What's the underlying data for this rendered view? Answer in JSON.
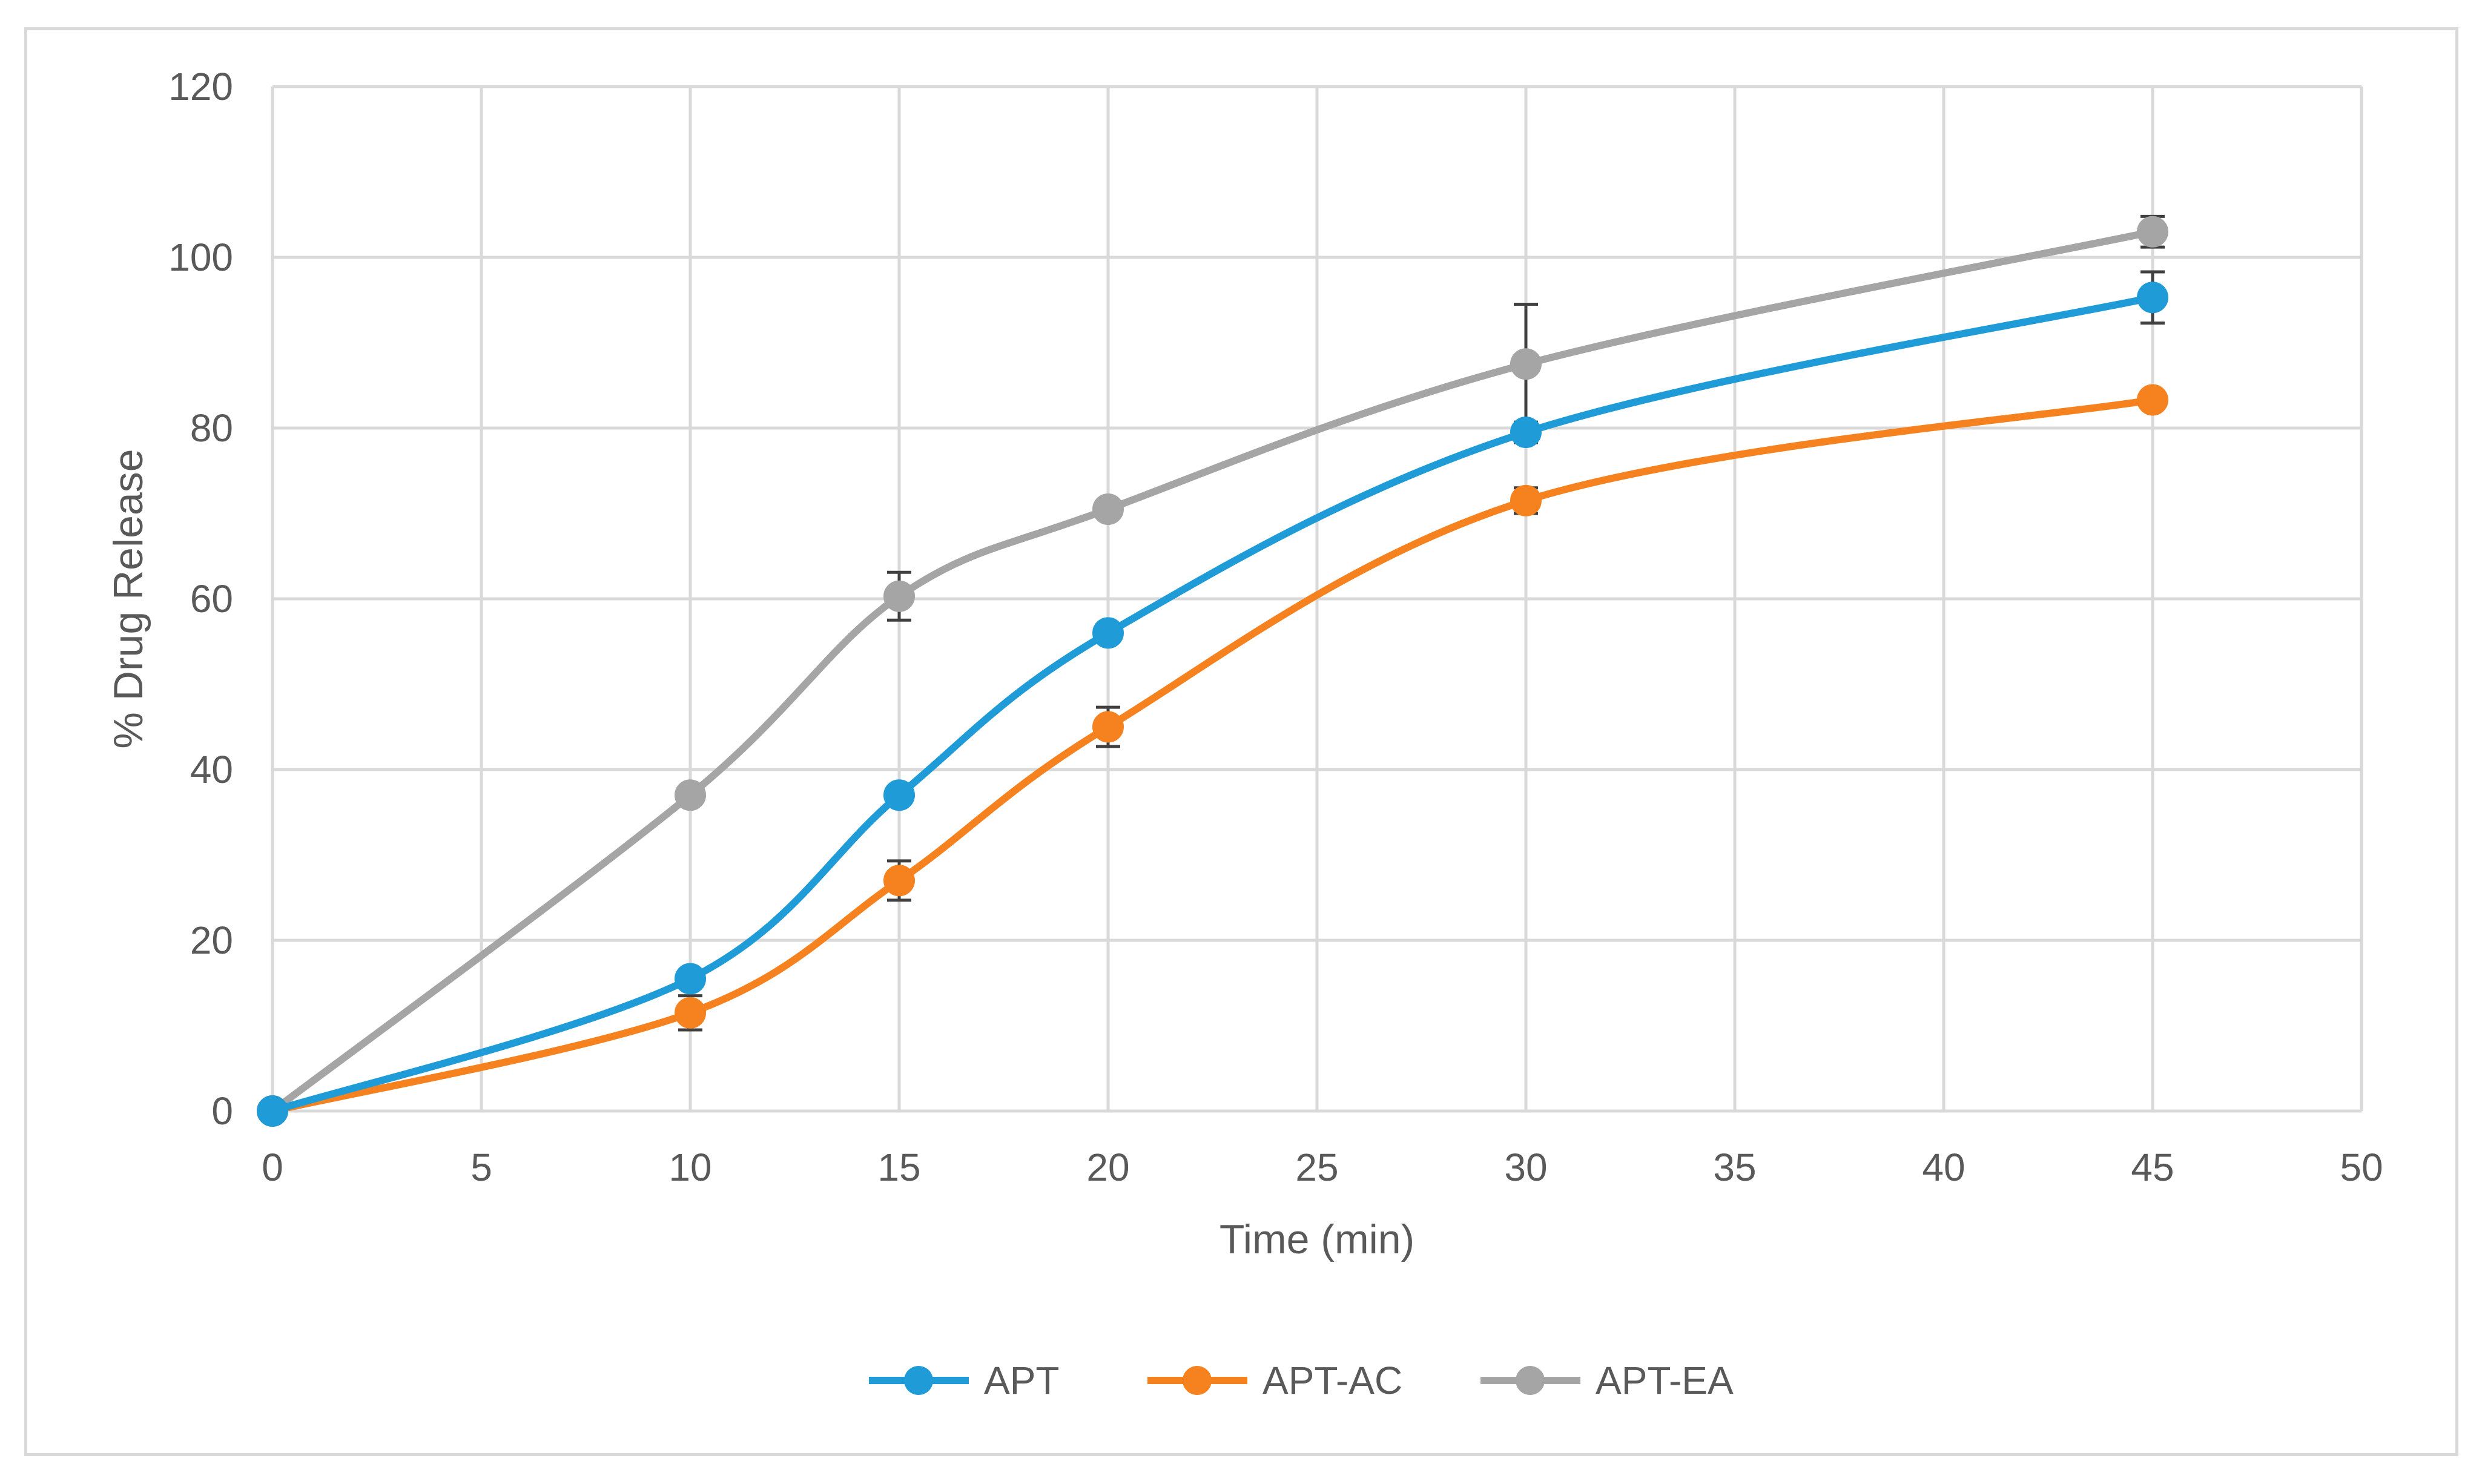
{
  "chart_data": {
    "type": "line",
    "title": "",
    "xlabel": "Time (min)",
    "ylabel": "% Drug Release",
    "xlim": [
      0,
      50
    ],
    "ylim": [
      0,
      120
    ],
    "x_ticks": [
      0,
      5,
      10,
      15,
      20,
      25,
      30,
      35,
      40,
      45,
      50
    ],
    "y_ticks": [
      0,
      20,
      40,
      60,
      80,
      100,
      120
    ],
    "grid": true,
    "legend_position": "bottom",
    "x": [
      0,
      10,
      15,
      20,
      30,
      45
    ],
    "series": [
      {
        "name": "APT",
        "color": "#1f9bd7",
        "values": [
          0,
          15.5,
          37,
          56,
          79.5,
          95.3
        ],
        "errors": [
          0,
          0,
          0,
          0,
          1.2,
          3.0
        ]
      },
      {
        "name": "APT-AC",
        "color": "#f5821f",
        "values": [
          0,
          11.5,
          27,
          45,
          71.5,
          83.3
        ],
        "errors": [
          0,
          2.0,
          2.3,
          2.3,
          1.5,
          0
        ]
      },
      {
        "name": "APT-EA",
        "color": "#a5a5a5",
        "values": [
          0,
          37,
          60.3,
          70.5,
          87.5,
          103
        ],
        "errors": [
          0,
          0,
          2.8,
          0,
          7.0,
          1.8
        ]
      }
    ]
  }
}
